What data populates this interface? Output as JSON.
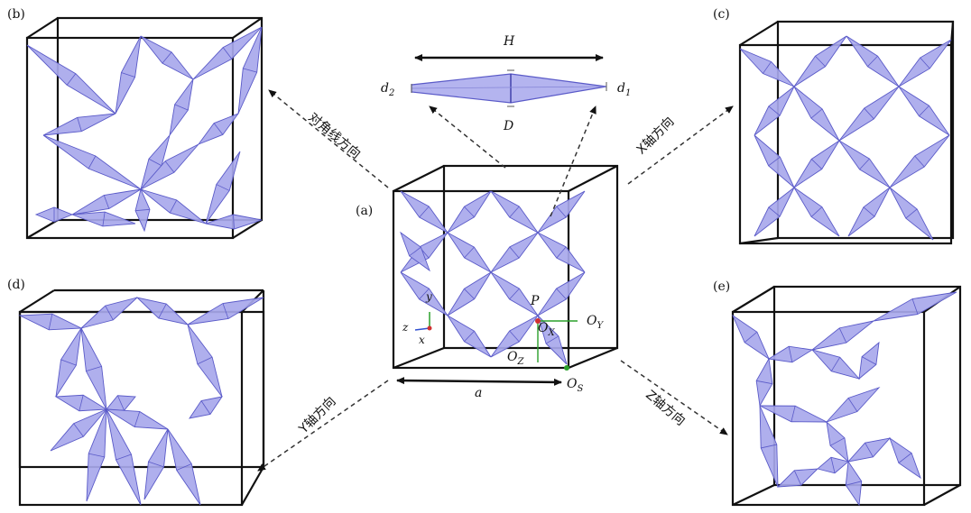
{
  "panels": {
    "a": "(a)",
    "b": "(b)",
    "c": "(c)",
    "d": "(d)",
    "e": "(e)"
  },
  "directions": {
    "diagonal": "对角线方向",
    "x_axis": "X轴方向",
    "y_axis": "Y轴方向",
    "z_axis": "Z轴方向"
  },
  "strut": {
    "H": "H",
    "D": "D",
    "d1": "d",
    "d1_sub": "1",
    "d2": "d",
    "d2_sub": "2"
  },
  "center": {
    "a": "a",
    "P": "P",
    "OX": "O",
    "OX_sub": "X",
    "OY": "O",
    "OY_sub": "Y",
    "OZ": "O",
    "OZ_sub": "Z",
    "OS": "O",
    "OS_sub": "S"
  },
  "axes": {
    "x": "x",
    "y": "y",
    "z": "z"
  },
  "colors": {
    "strut_fill": "#a8a8ec",
    "strut_stroke": "#5a5ac8",
    "frame": "#111111",
    "axis_x": "#d03030",
    "axis_y": "#2aa02a",
    "axis_z": "#3050d0"
  }
}
